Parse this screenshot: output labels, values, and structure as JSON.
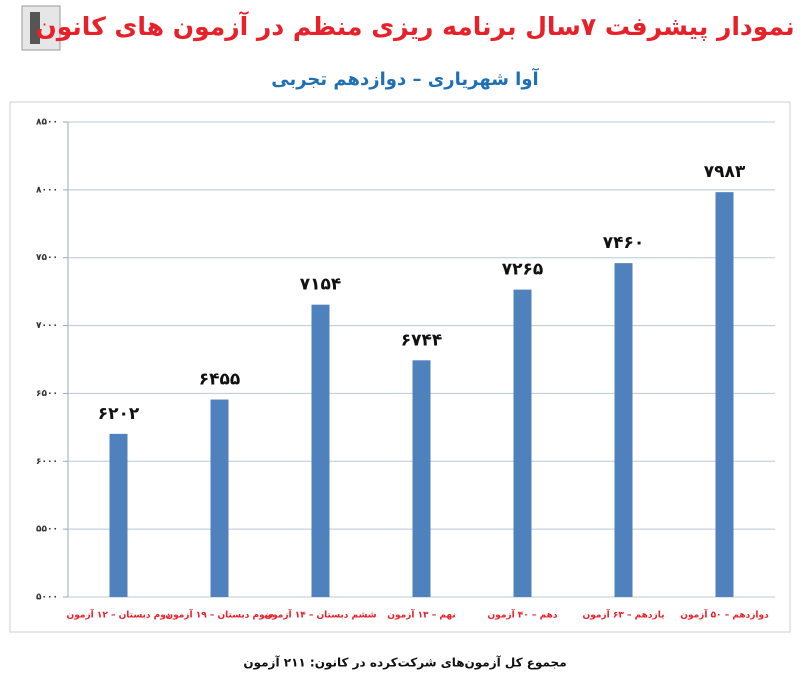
{
  "chart_data": {
    "type": "bar",
    "title": "نمودار پیشرفت ۷سال برنامه ریزی منظم در آزمون های کانون",
    "subtitle": "آوا شهریاری – دوازدهم تجربی",
    "footer": "مجموع کل آزمون‌های شرکت‌کرده در کانون:  ۲۱۱ آزمون",
    "categories": [
      "دوم دبستان – ۱۲ آزمون",
      "سوم دبستان – ۱۹ آزمون",
      "ششم دبستان – ۱۴ آزمون",
      "نهم – ۱۳ آزمون",
      "دهم – ۴۰ آزمون",
      "یازدهم – ۶۳ آزمون",
      "دوازدهم – ۵۰ آزمون"
    ],
    "values": [
      6202,
      6455,
      7154,
      6744,
      7265,
      7460,
      7983
    ],
    "value_labels": [
      "۶۲۰۲",
      "۶۴۵۵",
      "۷۱۵۴",
      "۶۷۴۴",
      "۷۲۶۵",
      "۷۴۶۰",
      "۷۹۸۳"
    ],
    "color": "#4f81bd",
    "ylim": [
      5000,
      8500
    ],
    "yticks": [
      {
        "value": 5000,
        "label": "۵۰۰۰"
      },
      {
        "value": 5500,
        "label": "۵۵۰۰"
      },
      {
        "value": 6000,
        "label": "۶۰۰۰"
      },
      {
        "value": 6500,
        "label": "۶۵۰۰"
      },
      {
        "value": 7000,
        "label": "۷۰۰۰"
      },
      {
        "value": 7500,
        "label": "۷۵۰۰"
      },
      {
        "value": 8000,
        "label": "۸۰۰۰"
      },
      {
        "value": 8500,
        "label": "۸۵۰۰"
      }
    ],
    "grid": true
  }
}
